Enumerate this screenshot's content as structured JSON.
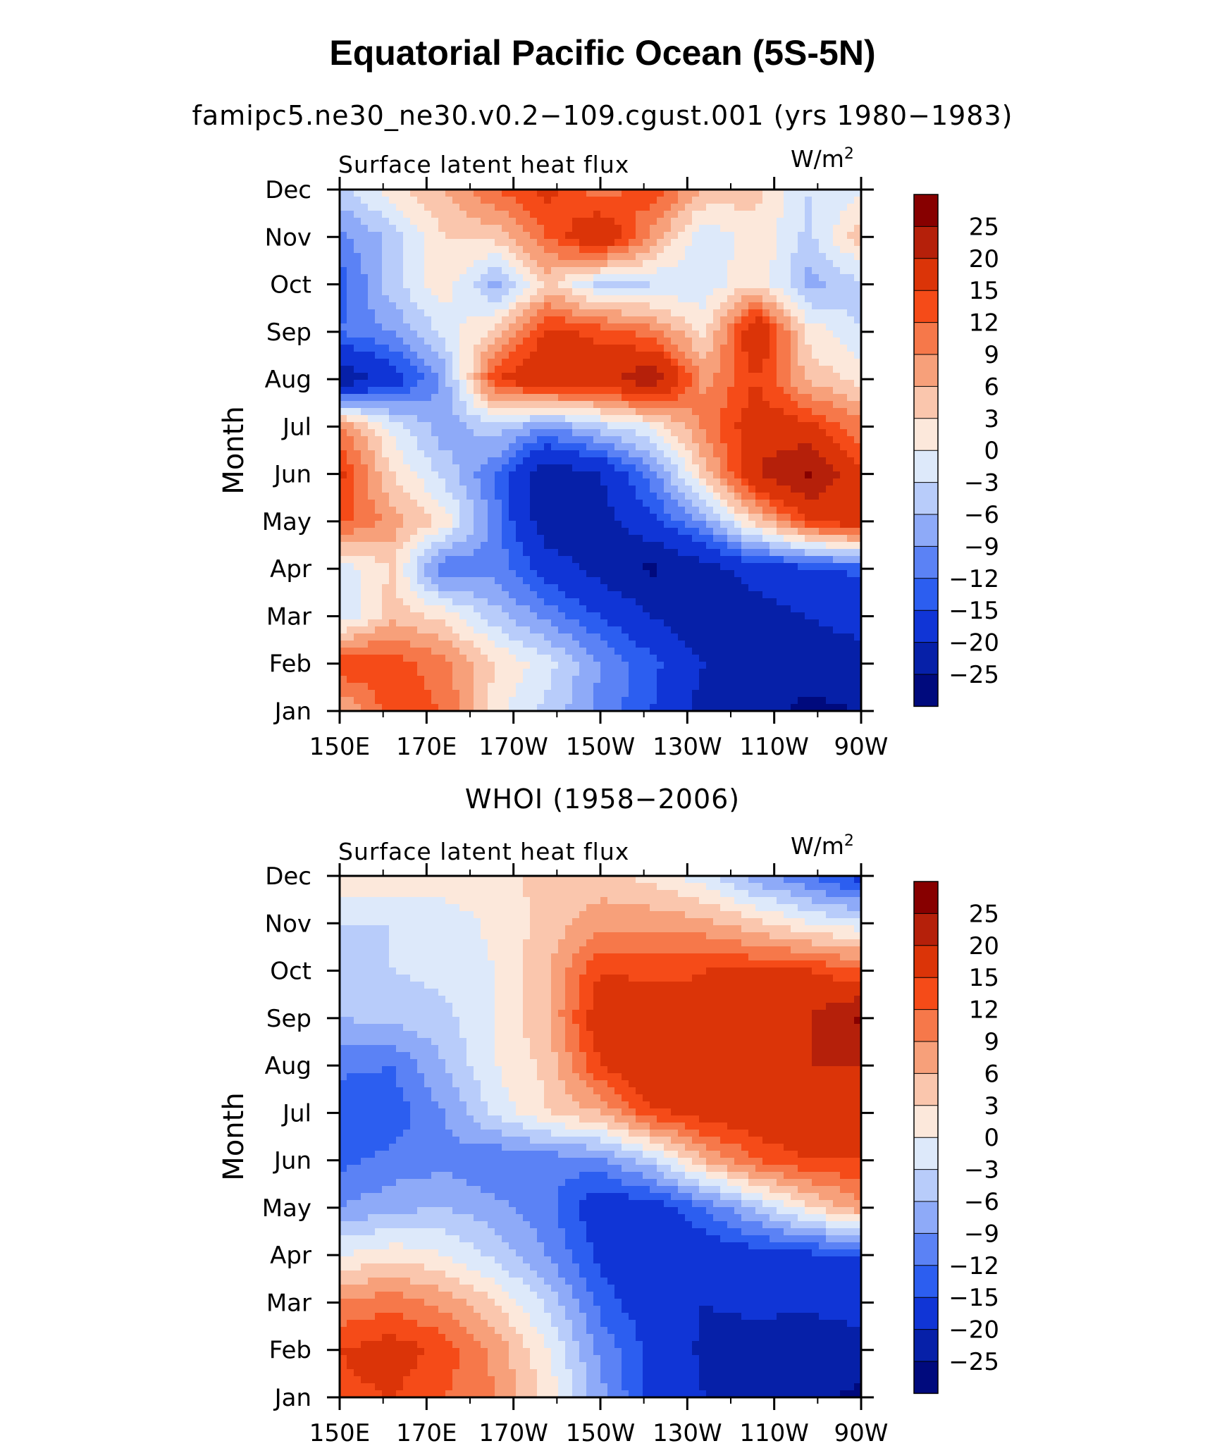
{
  "figure": {
    "title": "Equatorial Pacific Ocean (5S-5N)",
    "unit_label": "W/m",
    "unit_sup": "2"
  },
  "chart_data": [
    {
      "type": "heatmap",
      "title": "famipc5.ne30_ne30.v0.2−109.cgust.001 (yrs 1980−1983)",
      "subtitle": "Surface latent heat flux",
      "units": "W/m2",
      "xlabel": "",
      "ylabel": "Month",
      "x_ticks": [
        "150E",
        "170E",
        "170W",
        "150W",
        "130W",
        "110W",
        "90W"
      ],
      "y_ticks": [
        "Jan",
        "Feb",
        "Mar",
        "Apr",
        "May",
        "Jun",
        "Jul",
        "Aug",
        "Sep",
        "Oct",
        "Nov",
        "Dec"
      ],
      "colorbar_levels": [
        "25",
        "20",
        "15",
        "12",
        "9",
        "6",
        "3",
        "0",
        "−3",
        "−6",
        "−9",
        "−12",
        "−15",
        "−20",
        "−25"
      ],
      "colorbar_colors": [
        "#870000",
        "#b5200a",
        "#db3408",
        "#f54b18",
        "#f6784a",
        "#f7a07a",
        "#fac6ad",
        "#fce8db",
        "#dde9fa",
        "#b8ccfa",
        "#8eaaf8",
        "#5b82f5",
        "#2c5ef0",
        "#1035d6",
        "#0620a8",
        "#000a7d"
      ],
      "grid": [
        [
          5,
          14,
          12,
          1,
          -4,
          -10,
          -15,
          -22,
          -24,
          -26,
          -25
        ],
        [
          15,
          14,
          10,
          3,
          -2,
          -9,
          -14,
          -20,
          -22,
          -23,
          -22
        ],
        [
          -3,
          5,
          2,
          -5,
          -10,
          -15,
          -20,
          -24,
          -22,
          -20,
          -18
        ],
        [
          -2,
          3,
          -12,
          -10,
          -17,
          -22,
          -26,
          -22,
          -18,
          -16,
          -14
        ],
        [
          13,
          8,
          2,
          -11,
          -24,
          -22,
          -16,
          -8,
          4,
          15,
          18
        ],
        [
          16,
          3,
          -4,
          -12,
          -24,
          -20,
          -10,
          4,
          20,
          26,
          15
        ],
        [
          10,
          -1,
          -8,
          -4,
          -9,
          -4,
          0,
          10,
          18,
          16,
          10
        ],
        [
          -24,
          -18,
          -8,
          15,
          20,
          18,
          24,
          8,
          15,
          5,
          2
        ],
        [
          -12,
          -9,
          -2,
          4,
          16,
          14,
          10,
          2,
          20,
          2,
          -3
        ],
        [
          -14,
          -4,
          2,
          -7,
          4,
          -4,
          -3,
          -2,
          3,
          -7,
          -4
        ],
        [
          -10,
          -5,
          3,
          4,
          12,
          20,
          8,
          -3,
          2,
          -4,
          5
        ],
        [
          -4,
          2,
          6,
          12,
          16,
          10,
          14,
          6,
          4,
          -3,
          -1
        ]
      ]
    },
    {
      "type": "heatmap",
      "title": "WHOI (1958−2006)",
      "subtitle": "Surface latent heat flux",
      "units": "W/m2",
      "xlabel": "",
      "ylabel": "Month",
      "x_ticks": [
        "150E",
        "170E",
        "170W",
        "150W",
        "130W",
        "110W",
        "90W"
      ],
      "y_ticks": [
        "Jan",
        "Feb",
        "Mar",
        "Apr",
        "May",
        "Jun",
        "Jul",
        "Aug",
        "Sep",
        "Oct",
        "Nov",
        "Dec"
      ],
      "colorbar_levels": [
        "25",
        "20",
        "15",
        "12",
        "9",
        "6",
        "3",
        "0",
        "−3",
        "−6",
        "−9",
        "−12",
        "−15",
        "−20",
        "−25"
      ],
      "colorbar_colors": [
        "#870000",
        "#b5200a",
        "#db3408",
        "#f54b18",
        "#f6784a",
        "#f7a07a",
        "#fac6ad",
        "#fce8db",
        "#dde9fa",
        "#b8ccfa",
        "#8eaaf8",
        "#5b82f5",
        "#2c5ef0",
        "#1035d6",
        "#0620a8",
        "#000a7d"
      ],
      "grid": [
        [
          14,
          15,
          12,
          9,
          2,
          -8,
          -16,
          -20,
          -22,
          -24,
          -26
        ],
        [
          15,
          17,
          14,
          8,
          0,
          -10,
          -16,
          -21,
          -22,
          -23,
          -22
        ],
        [
          9,
          11,
          8,
          3,
          -4,
          -13,
          -18,
          -20,
          -19,
          -19,
          -18
        ],
        [
          0,
          2,
          0,
          -4,
          -9,
          -16,
          -19,
          -18,
          -17,
          -16,
          -15
        ],
        [
          -9,
          -7,
          -6,
          -8,
          -11,
          -18,
          -17,
          -12,
          -5,
          2,
          8
        ],
        [
          -13,
          -11,
          -10,
          -12,
          -11,
          -10,
          -4,
          6,
          12,
          15,
          15
        ],
        [
          -15,
          -14,
          -9,
          -2,
          3,
          6,
          14,
          17,
          18,
          20,
          18
        ],
        [
          -11,
          -12,
          -6,
          0,
          4,
          15,
          20,
          17,
          18,
          20,
          20
        ],
        [
          -6,
          -5,
          -4,
          0,
          6,
          18,
          18,
          16,
          18,
          20,
          26
        ],
        [
          -4,
          -3,
          -2,
          0,
          6,
          15,
          14,
          15,
          15,
          15,
          12
        ],
        [
          -3,
          -3,
          -2,
          1,
          4,
          8,
          8,
          7,
          4,
          0,
          -2
        ],
        [
          2,
          3,
          2,
          2,
          4,
          4,
          2,
          -2,
          -8,
          -12,
          -17
        ]
      ]
    }
  ]
}
